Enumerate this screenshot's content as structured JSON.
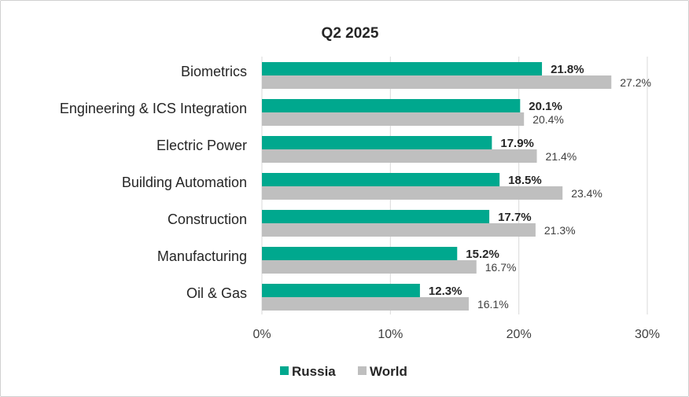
{
  "chart_data": {
    "type": "bar",
    "orientation": "horizontal",
    "title": "Q2 2025",
    "categories": [
      "Biometrics",
      "Engineering & ICS Integration",
      "Electric Power",
      "Building Automation",
      "Construction",
      "Manufacturing",
      "Oil & Gas"
    ],
    "series": [
      {
        "name": "Russia",
        "color": "#00a88e",
        "values": [
          21.8,
          20.1,
          17.9,
          18.5,
          17.7,
          15.2,
          12.3
        ],
        "labels": [
          "21.8%",
          "20.1%",
          "17.9%",
          "18.5%",
          "17.7%",
          "15.2%",
          "12.3%"
        ]
      },
      {
        "name": "World",
        "color": "#bfbfbf",
        "values": [
          27.2,
          20.4,
          21.4,
          23.4,
          21.3,
          16.7,
          16.1
        ],
        "labels": [
          "27.2%",
          "20.4%",
          "21.4%",
          "23.4%",
          "21.3%",
          "16.7%",
          "16.1%"
        ]
      }
    ],
    "xlim": [
      0,
      30
    ],
    "xticks": [
      0,
      10,
      20,
      30
    ],
    "xtick_labels": [
      "0%",
      "10%",
      "20%",
      "30%"
    ],
    "grid": "vertical",
    "gridline_color": "#d9d9d9",
    "legend_position": "bottom"
  }
}
